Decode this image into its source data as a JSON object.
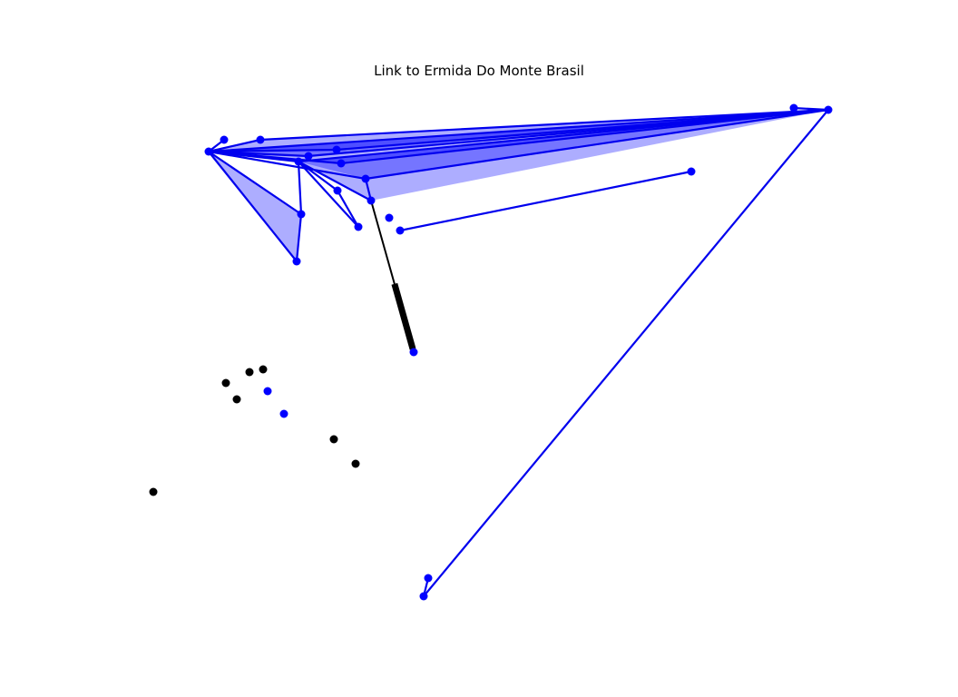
{
  "title": "Link to Ermida Do Monte Brasil",
  "colors": {
    "link": "#0000ee",
    "fill": "#0000ff",
    "fill_opacity": 0.32,
    "highlight": "#000000",
    "background": "#ffffff"
  },
  "nodes": [
    {
      "id": "n1",
      "color": "blue"
    },
    {
      "id": "n2",
      "color": "blue"
    },
    {
      "id": "n3",
      "color": "blue"
    },
    {
      "id": "n4",
      "color": "blue"
    },
    {
      "id": "n5",
      "color": "blue"
    },
    {
      "id": "n6",
      "color": "blue"
    },
    {
      "id": "n7",
      "color": "blue"
    },
    {
      "id": "n8",
      "color": "blue"
    },
    {
      "id": "n9",
      "color": "blue"
    },
    {
      "id": "n10",
      "color": "blue"
    },
    {
      "id": "n11",
      "color": "blue"
    },
    {
      "id": "n12",
      "color": "blue"
    },
    {
      "id": "n13",
      "color": "blue"
    },
    {
      "id": "n14",
      "color": "blue"
    },
    {
      "id": "n15",
      "color": "blue"
    },
    {
      "id": "n16",
      "color": "blue"
    },
    {
      "id": "n17",
      "color": "blue"
    },
    {
      "id": "n18",
      "color": "blue"
    },
    {
      "id": "n19",
      "color": "blue"
    },
    {
      "id": "n20",
      "color": "blue"
    },
    {
      "id": "n21",
      "color": "blue"
    },
    {
      "id": "n22",
      "color": "blue"
    },
    {
      "id": "n23",
      "color": "blue"
    },
    {
      "id": "n24",
      "color": "black"
    },
    {
      "id": "n25",
      "color": "black"
    },
    {
      "id": "n26",
      "color": "black"
    },
    {
      "id": "n27",
      "color": "black"
    },
    {
      "id": "n28",
      "color": "black"
    },
    {
      "id": "n29",
      "color": "black"
    },
    {
      "id": "n30",
      "color": "black"
    }
  ],
  "edges": [
    [
      "n1",
      "n3"
    ],
    [
      "n1",
      "n2"
    ],
    [
      "n1",
      "n4"
    ],
    [
      "n1",
      "n5"
    ],
    [
      "n1",
      "n6"
    ],
    [
      "n1",
      "n7"
    ],
    [
      "n1",
      "n8"
    ],
    [
      "n1",
      "n9"
    ],
    [
      "n1",
      "n10"
    ],
    [
      "n1",
      "n11"
    ],
    [
      "n3",
      "n9"
    ],
    [
      "n4",
      "n9"
    ],
    [
      "n5",
      "n9"
    ],
    [
      "n6",
      "n9"
    ],
    [
      "n7",
      "n9"
    ],
    [
      "n8",
      "n9"
    ],
    [
      "n8",
      "n13"
    ],
    [
      "n12",
      "n9"
    ],
    [
      "n6",
      "n10"
    ],
    [
      "n6",
      "n14"
    ],
    [
      "n6",
      "n15"
    ],
    [
      "n6",
      "n13"
    ],
    [
      "n10",
      "n11"
    ],
    [
      "n14",
      "n15"
    ],
    [
      "n13",
      "n16"
    ],
    [
      "n17",
      "n18"
    ],
    [
      "n22",
      "n9"
    ],
    [
      "n22",
      "n23"
    ]
  ],
  "faces": [
    [
      "n1",
      "n3",
      "n9"
    ],
    [
      "n1",
      "n4",
      "n9"
    ],
    [
      "n1",
      "n5",
      "n9"
    ],
    [
      "n1",
      "n7",
      "n9"
    ],
    [
      "n6",
      "n8",
      "n9"
    ],
    [
      "n6",
      "n13",
      "n9"
    ],
    [
      "n1",
      "n10",
      "n11"
    ]
  ],
  "highlight_edges": [
    [
      "n13",
      "n16"
    ]
  ]
}
